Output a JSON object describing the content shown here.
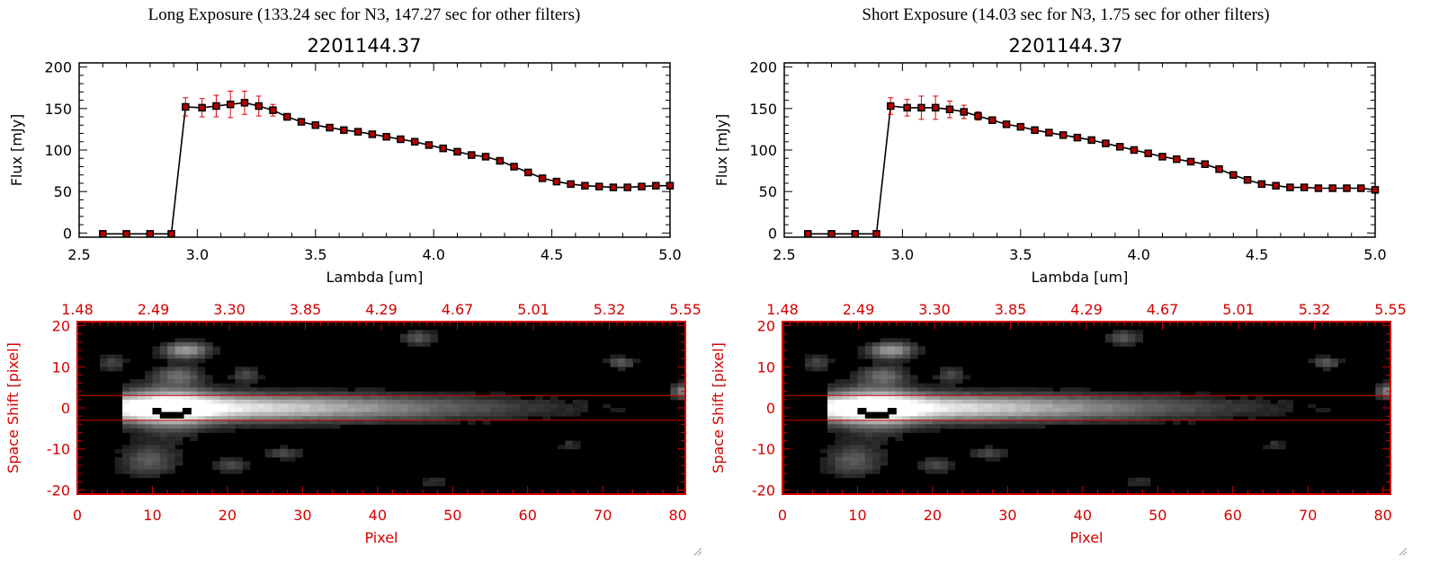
{
  "colors": {
    "data_point": "#b40000",
    "error_bar": "#e00000",
    "image_axis": "#d40000",
    "line": "#000000",
    "marker_outline": "#000000"
  },
  "panels": [
    {
      "title": "Long Exposure (133.24 sec for N3, 147.27 sec for other filters)",
      "object_name": "2201144.37"
    },
    {
      "title": "Short Exposure (14.03 sec for N3, 1.75 sec for other filters)",
      "object_name": "2201144.37"
    }
  ],
  "chart_data": [
    {
      "type": "line",
      "xlabel": "Lambda [um]",
      "ylabel": "Flux [mJy]",
      "xlim": [
        2.5,
        5.0
      ],
      "ylim": [
        -5,
        205
      ],
      "xticks": [
        "2.5",
        "3.0",
        "3.5",
        "4.0",
        "4.5",
        "5.0"
      ],
      "yticks": [
        "0",
        "50",
        "100",
        "150",
        "200"
      ],
      "x": [
        2.6,
        2.7,
        2.8,
        2.89,
        2.95,
        3.02,
        3.08,
        3.14,
        3.2,
        3.26,
        3.32,
        3.38,
        3.44,
        3.5,
        3.56,
        3.62,
        3.68,
        3.74,
        3.8,
        3.86,
        3.92,
        3.98,
        4.04,
        4.1,
        4.16,
        4.22,
        4.28,
        4.34,
        4.4,
        4.46,
        4.52,
        4.58,
        4.64,
        4.7,
        4.76,
        4.82,
        4.88,
        4.94,
        5.0
      ],
      "y": [
        -1,
        -1,
        -1,
        -1,
        152,
        151,
        153,
        155,
        157,
        153,
        148,
        140,
        134,
        130,
        127,
        124,
        122,
        119,
        116,
        113,
        110,
        106,
        102,
        98,
        94,
        92,
        87,
        80,
        73,
        66,
        62,
        59,
        57,
        56,
        55,
        55,
        56,
        57,
        57
      ],
      "yerr": [
        0,
        0,
        0,
        0,
        11,
        11,
        13,
        16,
        14,
        12,
        7,
        4,
        3,
        2,
        2,
        2,
        2,
        2,
        2,
        2,
        2,
        2,
        2,
        2,
        2,
        2,
        2,
        2,
        2,
        2,
        2,
        2,
        2,
        2,
        2,
        2,
        2,
        2,
        2
      ]
    },
    {
      "type": "heatmap",
      "xlabel": "Pixel",
      "ylabel": "Space Shift [pixel]",
      "xlim": [
        0,
        81
      ],
      "ylim": [
        -21,
        21
      ],
      "xticks": [
        "0",
        "10",
        "20",
        "30",
        "40",
        "50",
        "60",
        "70",
        "80"
      ],
      "yticks": [
        "-20",
        "-10",
        "0",
        "10",
        "20"
      ],
      "top_ticks": [
        "1.48",
        "2.49",
        "3.30",
        "3.85",
        "4.29",
        "4.67",
        "5.01",
        "5.32",
        "5.55"
      ],
      "aperture_rows": [
        -3,
        3
      ]
    },
    {
      "type": "line",
      "xlabel": "Lambda [um]",
      "ylabel": "Flux [mJy]",
      "xlim": [
        2.5,
        5.0
      ],
      "ylim": [
        -5,
        205
      ],
      "xticks": [
        "2.5",
        "3.0",
        "3.5",
        "4.0",
        "4.5",
        "5.0"
      ],
      "yticks": [
        "0",
        "50",
        "100",
        "150",
        "200"
      ],
      "x": [
        2.6,
        2.7,
        2.8,
        2.89,
        2.95,
        3.02,
        3.08,
        3.14,
        3.2,
        3.26,
        3.32,
        3.38,
        3.44,
        3.5,
        3.56,
        3.62,
        3.68,
        3.74,
        3.8,
        3.86,
        3.92,
        3.98,
        4.04,
        4.1,
        4.16,
        4.22,
        4.28,
        4.34,
        4.4,
        4.46,
        4.52,
        4.58,
        4.64,
        4.7,
        4.76,
        4.82,
        4.88,
        4.94,
        5.0
      ],
      "y": [
        -1,
        -1,
        -1,
        -1,
        153,
        151,
        151,
        151,
        149,
        146,
        141,
        136,
        131,
        128,
        124,
        121,
        118,
        115,
        112,
        108,
        104,
        100,
        96,
        92,
        89,
        86,
        83,
        77,
        70,
        64,
        59,
        57,
        55,
        55,
        54,
        54,
        54,
        54,
        52
      ],
      "yerr": [
        0,
        0,
        0,
        0,
        10,
        10,
        14,
        14,
        10,
        8,
        5,
        3,
        3,
        2,
        2,
        2,
        2,
        2,
        2,
        2,
        2,
        2,
        2,
        2,
        2,
        2,
        2,
        2,
        2,
        2,
        2,
        2,
        2,
        2,
        2,
        2,
        2,
        2,
        2
      ]
    },
    {
      "type": "heatmap",
      "xlabel": "Pixel",
      "ylabel": "Space Shift [pixel]",
      "xlim": [
        0,
        81
      ],
      "ylim": [
        -21,
        21
      ],
      "xticks": [
        "0",
        "10",
        "20",
        "30",
        "40",
        "50",
        "60",
        "70",
        "80"
      ],
      "yticks": [
        "-20",
        "-10",
        "0",
        "10",
        "20"
      ],
      "top_ticks": [
        "1.48",
        "2.49",
        "3.30",
        "3.85",
        "4.29",
        "4.67",
        "5.01",
        "5.32",
        "5.55"
      ],
      "aperture_rows": [
        -3,
        3
      ]
    }
  ]
}
